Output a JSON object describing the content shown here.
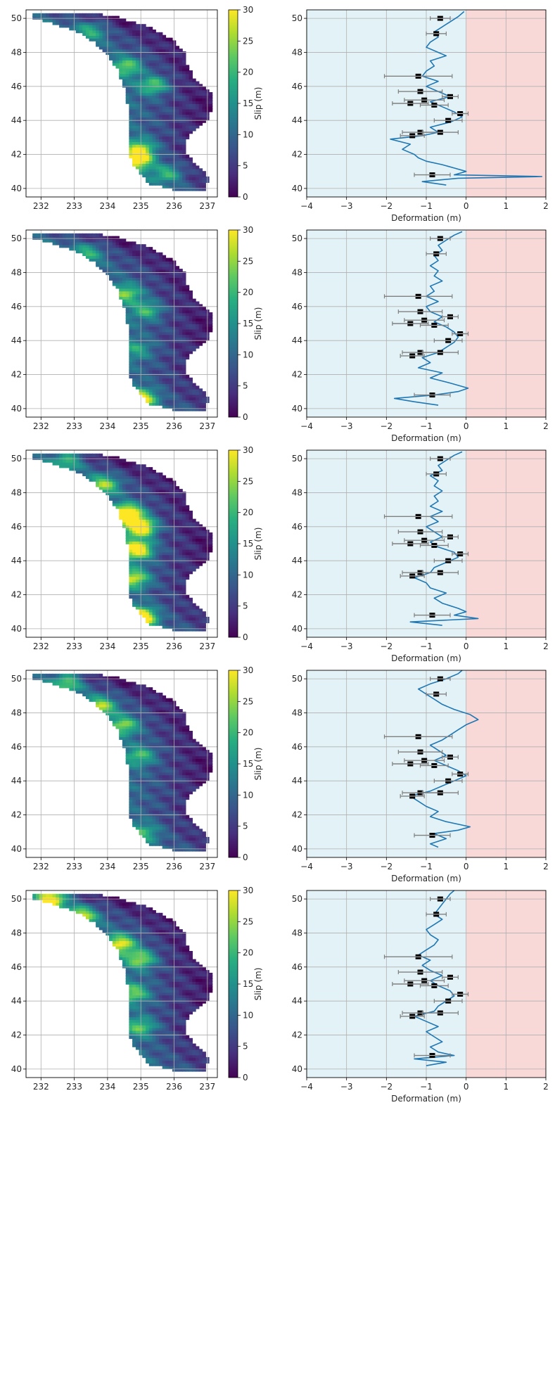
{
  "figure": {
    "colorbar": {
      "label": "Slip (m)",
      "ticks": [
        "0",
        "5",
        "10",
        "15",
        "20",
        "25",
        "30"
      ],
      "range": [
        0,
        30
      ],
      "colormap": "viridis"
    },
    "map_x_ticks": [
      "232",
      "233",
      "234",
      "235",
      "236",
      "237"
    ],
    "map_y_ticks": [
      "40",
      "42",
      "44",
      "46",
      "48",
      "50"
    ],
    "deform_x_ticks": [
      "−4",
      "−3",
      "−2",
      "−1",
      "0",
      "1",
      "2"
    ],
    "deform_y_ticks": [
      "40",
      "42",
      "44",
      "46",
      "48",
      "50"
    ],
    "deform_xlabel": "Deformation (m)",
    "colors": {
      "subsidence_bg": "#e3f2f6",
      "uplift_bg": "#f9d8d8",
      "curve": "#1f77b4",
      "obs_marker": "#000000",
      "errorbar": "#808080",
      "grid": "#b0b0b0"
    }
  },
  "chart_data": [
    {
      "type": "line",
      "panel": 1,
      "xlabel": "Deformation (m)",
      "xlim": [
        -4,
        2
      ],
      "ylim": [
        39.5,
        50.5
      ],
      "curve": {
        "lat": [
          40.2,
          40.4,
          40.6,
          40.7,
          40.8,
          41.0,
          41.2,
          41.4,
          41.6,
          41.8,
          42.0,
          42.3,
          42.6,
          42.9,
          43.1,
          43.3,
          43.6,
          43.9,
          44.2,
          44.5,
          44.8,
          45.1,
          45.4,
          45.7,
          46.0,
          46.3,
          46.6,
          46.9,
          47.2,
          47.5,
          47.8,
          48.0,
          48.3,
          48.6,
          48.9,
          49.2,
          49.5,
          49.8,
          50.1,
          50.4
        ],
        "def": [
          -0.5,
          -1.1,
          -0.2,
          1.9,
          -0.3,
          0.0,
          -0.3,
          -0.6,
          -1.0,
          -1.2,
          -1.3,
          -1.6,
          -1.4,
          -1.9,
          -1.1,
          -0.7,
          -0.9,
          -0.4,
          -0.1,
          -0.3,
          -0.6,
          -0.9,
          -0.4,
          -0.7,
          -1.0,
          -0.7,
          -1.1,
          -1.0,
          -0.8,
          -0.9,
          -0.5,
          -0.7,
          -1.0,
          -0.9,
          -0.7,
          -0.8,
          -0.6,
          -0.4,
          -0.2,
          -0.05
        ]
      }
    },
    {
      "type": "line",
      "panel": 2,
      "xlabel": "Deformation (m)",
      "xlim": [
        -4,
        2
      ],
      "ylim": [
        39.5,
        50.5
      ],
      "curve": {
        "lat": [
          40.2,
          40.4,
          40.6,
          40.8,
          41.0,
          41.2,
          41.5,
          41.8,
          42.1,
          42.4,
          42.7,
          43.0,
          43.3,
          43.6,
          43.9,
          44.2,
          44.5,
          44.8,
          45.1,
          45.4,
          45.7,
          46.0,
          46.3,
          46.6,
          46.9,
          47.2,
          47.5,
          47.8,
          48.1,
          48.4,
          48.7,
          49.0,
          49.3,
          49.6,
          49.9,
          50.2,
          50.4
        ],
        "def": [
          -0.7,
          -1.3,
          -1.8,
          -0.8,
          -0.2,
          0.05,
          -0.4,
          -0.9,
          -0.6,
          -1.2,
          -0.9,
          -1.1,
          -0.7,
          -0.5,
          -0.3,
          -0.2,
          -0.3,
          -0.5,
          -0.8,
          -0.6,
          -0.9,
          -1.0,
          -0.7,
          -1.0,
          -0.8,
          -0.9,
          -0.6,
          -0.8,
          -0.7,
          -0.9,
          -0.7,
          -0.8,
          -0.6,
          -0.7,
          -0.5,
          -0.3,
          -0.1
        ]
      }
    },
    {
      "type": "line",
      "panel": 3,
      "xlabel": "Deformation (m)",
      "xlim": [
        -4,
        2
      ],
      "ylim": [
        39.5,
        50.5
      ],
      "curve": {
        "lat": [
          40.2,
          40.4,
          40.6,
          40.8,
          41.0,
          41.2,
          41.5,
          41.8,
          42.1,
          42.4,
          42.7,
          43.0,
          43.3,
          43.6,
          43.9,
          44.2,
          44.5,
          44.8,
          45.1,
          45.4,
          45.7,
          46.0,
          46.3,
          46.6,
          46.9,
          47.2,
          47.5,
          47.8,
          48.1,
          48.4,
          48.7,
          49.0,
          49.3,
          49.6,
          49.9,
          50.2,
          50.4
        ],
        "def": [
          -0.6,
          -1.4,
          0.3,
          -0.3,
          0.0,
          -0.2,
          -0.6,
          -0.8,
          -0.5,
          -0.9,
          -1.0,
          -1.3,
          -0.9,
          -0.8,
          -0.5,
          -0.2,
          -0.3,
          -0.7,
          -0.9,
          -0.6,
          -0.8,
          -1.0,
          -0.7,
          -0.9,
          -0.6,
          -0.9,
          -0.7,
          -0.8,
          -0.6,
          -0.8,
          -0.7,
          -0.9,
          -0.6,
          -0.7,
          -0.5,
          -0.3,
          -0.1
        ]
      }
    },
    {
      "type": "line",
      "panel": 4,
      "xlabel": "Deformation (m)",
      "xlim": [
        -4,
        2
      ],
      "ylim": [
        39.5,
        50.5
      ],
      "curve": {
        "lat": [
          40.1,
          40.3,
          40.6,
          40.9,
          41.1,
          41.3,
          41.6,
          41.9,
          42.2,
          42.5,
          42.8,
          43.1,
          43.4,
          43.7,
          44.0,
          44.3,
          44.6,
          44.9,
          45.2,
          45.5,
          45.8,
          46.1,
          46.4,
          46.7,
          47.0,
          47.3,
          47.6,
          47.9,
          48.2,
          48.5,
          48.8,
          49.1,
          49.4,
          49.7,
          50.0,
          50.3,
          50.5
        ],
        "def": [
          -0.7,
          -0.9,
          -0.5,
          -0.8,
          -0.2,
          0.1,
          -0.5,
          -0.9,
          -0.7,
          -1.0,
          -1.2,
          -1.4,
          -0.9,
          -0.6,
          -0.3,
          0.0,
          -0.2,
          -0.5,
          -0.8,
          -0.5,
          -0.7,
          -0.9,
          -0.6,
          -0.4,
          -0.2,
          0.0,
          0.3,
          0.1,
          -0.3,
          -0.6,
          -0.8,
          -1.0,
          -1.2,
          -0.9,
          -0.5,
          -0.2,
          -0.1
        ]
      }
    },
    {
      "type": "line",
      "panel": 5,
      "xlabel": "Deformation (m)",
      "xlim": [
        -4,
        2
      ],
      "ylim": [
        39.5,
        50.5
      ],
      "curve": {
        "lat": [
          40.2,
          40.4,
          40.6,
          40.8,
          41.0,
          41.3,
          41.6,
          41.9,
          42.2,
          42.5,
          42.8,
          43.1,
          43.4,
          43.7,
          44.0,
          44.3,
          44.6,
          44.9,
          45.2,
          45.5,
          45.8,
          46.1,
          46.4,
          46.7,
          47.0,
          47.3,
          47.6,
          47.9,
          48.2,
          48.5,
          48.8,
          49.1,
          49.4,
          49.7,
          50.0,
          50.3,
          50.5
        ],
        "def": [
          -1.0,
          -0.5,
          -1.3,
          -0.3,
          -0.7,
          -0.9,
          -0.6,
          -0.8,
          -1.0,
          -0.7,
          -1.0,
          -1.3,
          -0.8,
          -0.7,
          -0.5,
          -0.3,
          -0.4,
          -0.7,
          -0.9,
          -0.6,
          -0.9,
          -1.1,
          -0.9,
          -1.2,
          -1.0,
          -0.8,
          -0.7,
          -0.9,
          -1.0,
          -0.8,
          -0.6,
          -0.8,
          -0.7,
          -0.6,
          -0.5,
          -0.4,
          -0.3
        ]
      }
    }
  ],
  "observations": [
    {
      "lat": 50.0,
      "def": -0.65,
      "err": 0.25
    },
    {
      "lat": 49.1,
      "def": -0.75,
      "err": 0.25
    },
    {
      "lat": 46.6,
      "def": -1.2,
      "err": 0.85
    },
    {
      "lat": 45.7,
      "def": -1.15,
      "err": 0.55
    },
    {
      "lat": 45.4,
      "def": -0.4,
      "err": 0.2
    },
    {
      "lat": 45.2,
      "def": -1.05,
      "err": 0.5
    },
    {
      "lat": 45.0,
      "def": -1.4,
      "err": 0.45
    },
    {
      "lat": 44.9,
      "def": -0.8,
      "err": 0.35
    },
    {
      "lat": 44.4,
      "def": -0.15,
      "err": 0.2
    },
    {
      "lat": 44.0,
      "def": -0.45,
      "err": 0.35
    },
    {
      "lat": 43.3,
      "def": -1.15,
      "err": 0.45
    },
    {
      "lat": 43.3,
      "def": -0.65,
      "err": 0.45
    },
    {
      "lat": 43.1,
      "def": -1.35,
      "err": 0.3
    },
    {
      "lat": 40.8,
      "def": -0.85,
      "err": 0.45
    }
  ],
  "map_panels": [
    {
      "panel": 1,
      "hotspots": [
        {
          "lon": 234.9,
          "lat": 41.7,
          "slip": 24
        },
        {
          "lon": 235.0,
          "lat": 42.4,
          "slip": 15
        },
        {
          "lon": 235.4,
          "lat": 46.1,
          "slip": 15
        },
        {
          "lon": 234.6,
          "lat": 47.2,
          "slip": 14
        },
        {
          "lon": 233.5,
          "lat": 49.3,
          "slip": 10
        },
        {
          "lon": 235.8,
          "lat": 40.9,
          "slip": 12
        }
      ]
    },
    {
      "panel": 2,
      "hotspots": [
        {
          "lon": 235.0,
          "lat": 40.6,
          "slip": 22
        },
        {
          "lon": 234.6,
          "lat": 46.8,
          "slip": 14
        },
        {
          "lon": 235.2,
          "lat": 45.8,
          "slip": 12
        },
        {
          "lon": 233.4,
          "lat": 49.2,
          "slip": 10
        },
        {
          "lon": 234.9,
          "lat": 43.5,
          "slip": 8
        }
      ]
    },
    {
      "panel": 3,
      "hotspots": [
        {
          "lon": 234.6,
          "lat": 46.8,
          "slip": 28
        },
        {
          "lon": 235.0,
          "lat": 46.0,
          "slip": 27
        },
        {
          "lon": 234.9,
          "lat": 44.7,
          "slip": 25
        },
        {
          "lon": 235.0,
          "lat": 40.7,
          "slip": 28
        },
        {
          "lon": 234.8,
          "lat": 43.0,
          "slip": 18
        },
        {
          "lon": 233.9,
          "lat": 48.5,
          "slip": 16
        },
        {
          "lon": 232.8,
          "lat": 49.9,
          "slip": 12
        }
      ]
    },
    {
      "panel": 4,
      "hotspots": [
        {
          "lon": 232.8,
          "lat": 49.8,
          "slip": 14
        },
        {
          "lon": 233.8,
          "lat": 48.4,
          "slip": 17
        },
        {
          "lon": 234.5,
          "lat": 47.3,
          "slip": 15
        },
        {
          "lon": 235.0,
          "lat": 45.5,
          "slip": 12
        },
        {
          "lon": 235.1,
          "lat": 41.0,
          "slip": 10
        }
      ]
    },
    {
      "panel": 5,
      "hotspots": [
        {
          "lon": 232.3,
          "lat": 50.0,
          "slip": 25
        },
        {
          "lon": 233.2,
          "lat": 49.0,
          "slip": 20
        },
        {
          "lon": 234.4,
          "lat": 47.4,
          "slip": 20
        },
        {
          "lon": 235.0,
          "lat": 46.5,
          "slip": 17
        },
        {
          "lon": 234.8,
          "lat": 44.5,
          "slip": 14
        },
        {
          "lon": 235.0,
          "lat": 42.5,
          "slip": 13
        }
      ]
    }
  ]
}
